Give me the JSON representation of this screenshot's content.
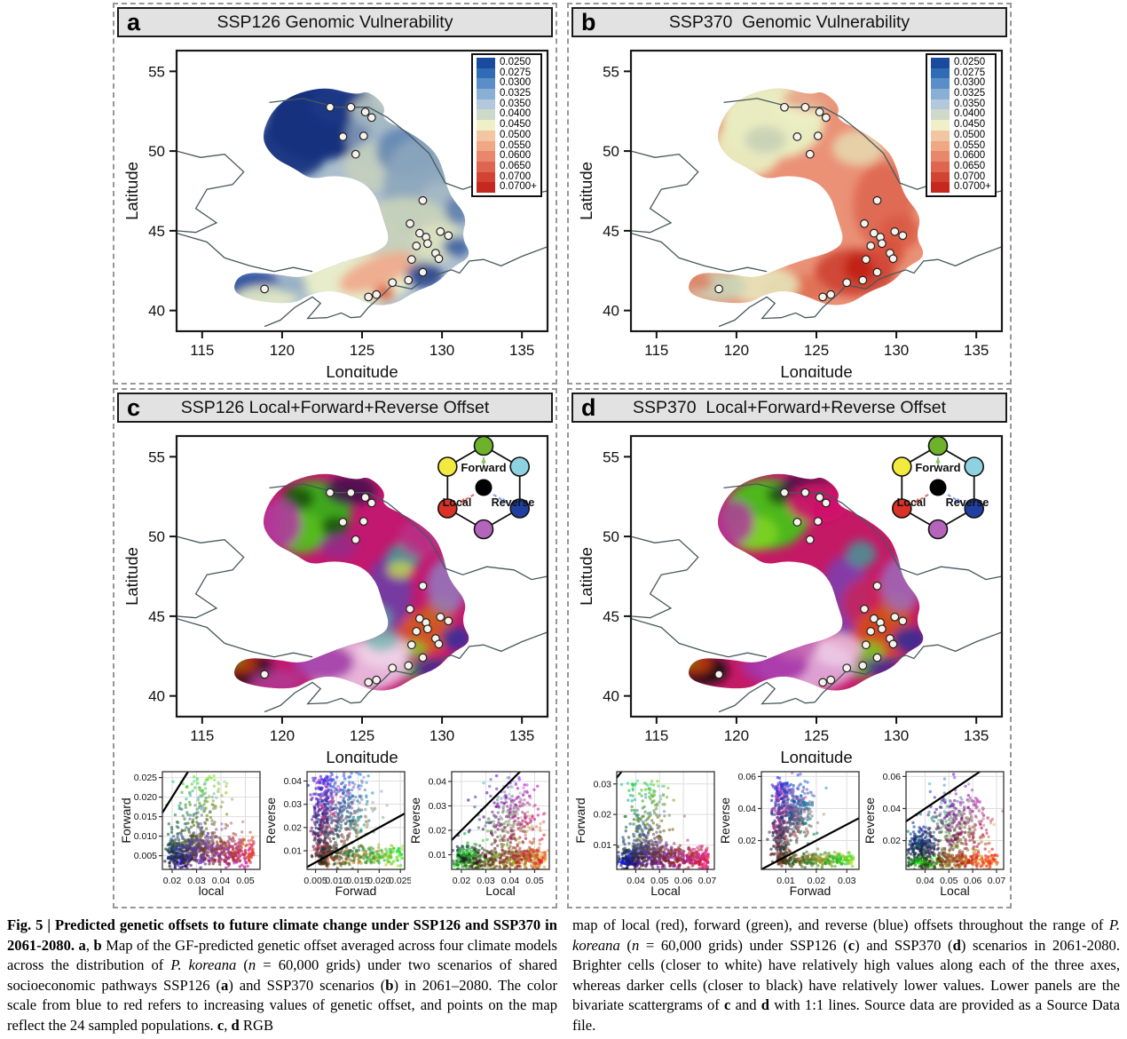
{
  "panels": {
    "a": {
      "label": "a",
      "title": "SSP126 Genomic Vulnerability"
    },
    "b": {
      "label": "b",
      "title": "SSP370  Genomic Vulnerability"
    },
    "c": {
      "label": "c",
      "title": "SSP126 Local+Forward+Reverse Offset"
    },
    "d": {
      "label": "d",
      "title": "SSP370  Local+Forward+Reverse Offset"
    }
  },
  "map_axes": {
    "xlabel": "Longitude",
    "ylabel": "Latitude",
    "xticks": [
      115,
      120,
      125,
      130,
      135
    ],
    "yticks": [
      55,
      50,
      45,
      40
    ],
    "xlim": [
      113.4,
      136.6
    ],
    "ylim": [
      38.7,
      56.3
    ]
  },
  "legend": {
    "labels": [
      "0.0250",
      "0.0275",
      "0.0300",
      "0.0325",
      "0.0350",
      "0.0400",
      "0.0450",
      "0.0500",
      "0.0550",
      "0.0600",
      "0.0650",
      "0.0700",
      "0.0700+"
    ],
    "colors": [
      "#1a4a9e",
      "#2f6cb5",
      "#5b8ec6",
      "#8aafd4",
      "#b3c8dd",
      "#cfd9c9",
      "#f0f0c8",
      "#f2c6a2",
      "#f0a884",
      "#e8876a",
      "#de6550",
      "#d24432",
      "#c6281f"
    ]
  },
  "hexagon": {
    "labels": {
      "forward": "Forward",
      "local": "Local",
      "reverse": "Reverse"
    },
    "vertex_colors": {
      "top": "#6cb32b",
      "top_left": "#f2ea3f",
      "top_right": "#8ed2e2",
      "bottom_left": "#da3227",
      "bottom_right": "#2040a0",
      "bottom": "#b464ba"
    },
    "center_color": "#000000",
    "arrow_colors": {
      "forward": "#8cc46a",
      "local": "#e06a5e",
      "reverse": "#7a9ae0"
    }
  },
  "sample_points": [
    [
      123.0,
      52.75
    ],
    [
      124.3,
      52.75
    ],
    [
      125.2,
      52.45
    ],
    [
      125.6,
      52.1
    ],
    [
      123.8,
      50.9
    ],
    [
      125.1,
      50.95
    ],
    [
      124.6,
      49.8
    ],
    [
      128.8,
      46.9
    ],
    [
      128.0,
      45.45
    ],
    [
      128.6,
      44.85
    ],
    [
      129.0,
      44.6
    ],
    [
      130.4,
      44.7
    ],
    [
      129.9,
      44.95
    ],
    [
      128.4,
      44.05
    ],
    [
      129.1,
      44.2
    ],
    [
      129.6,
      43.6
    ],
    [
      129.8,
      43.25
    ],
    [
      128.1,
      43.2
    ],
    [
      128.8,
      42.4
    ],
    [
      126.9,
      41.75
    ],
    [
      127.9,
      41.9
    ],
    [
      125.4,
      40.85
    ],
    [
      125.9,
      41.0
    ],
    [
      118.9,
      41.35
    ]
  ],
  "chart_data": [
    {
      "id": "map-a",
      "type": "heatmap",
      "title": "SSP126 Genomic Vulnerability",
      "xlabel": "Longitude",
      "ylabel": "Latitude",
      "xticks": [
        115,
        120,
        125,
        130,
        135
      ],
      "yticks": [
        55,
        50,
        45,
        40
      ],
      "xlim": [
        113.4,
        136.6
      ],
      "ylim": [
        38.7,
        56.3
      ],
      "colorbar_values": [
        "0.0250",
        "0.0275",
        "0.0300",
        "0.0325",
        "0.0350",
        "0.0400",
        "0.0450",
        "0.0500",
        "0.0550",
        "0.0600",
        "0.0650",
        "0.0700",
        "0.0700+"
      ],
      "pattern": "dark blue (low offset ~0.025) in northwest Greater Khingan blob, slate blue-green midband, pale yellow and salmon (0.045-0.055) in the south, small red spots near 126.5E 41N",
      "n_points": 24
    },
    {
      "id": "map-b",
      "type": "heatmap",
      "title": "SSP370  Genomic Vulnerability",
      "xlabel": "Longitude",
      "ylabel": "Latitude",
      "xticks": [
        115,
        120,
        125,
        130,
        135
      ],
      "yticks": [
        55,
        50,
        45,
        40
      ],
      "xlim": [
        113.4,
        136.6
      ],
      "ylim": [
        38.7,
        56.3
      ],
      "colorbar_values": [
        "0.0250",
        "0.0275",
        "0.0300",
        "0.0325",
        "0.0350",
        "0.0400",
        "0.0450",
        "0.0500",
        "0.0550",
        "0.0600",
        "0.0650",
        "0.0700",
        "0.0700+"
      ],
      "pattern": "pale yellow (~0.045) northwest blob, salmon-red (0.055-0.065) elsewhere, deep red (0.0700+) hotspot near 127.5E 42.5N",
      "n_points": 24
    },
    {
      "id": "map-c",
      "type": "rgb-map",
      "title": "SSP126 Local+Forward+Reverse Offset",
      "channels": {
        "red": "Local",
        "green": "Forward",
        "blue": "Reverse"
      },
      "xlim": [
        113.4,
        136.6
      ],
      "ylim": [
        38.7,
        56.3
      ],
      "pattern": "green core in NW blob with dark patches, magenta/crimson surround, purple and teal midband, orange cluster near 129E 44N, light pink south, dark SW appendage"
    },
    {
      "id": "map-d",
      "type": "rgb-map",
      "title": "SSP370  Local+Forward+Reverse Offset",
      "channels": {
        "red": "Local",
        "green": "Forward",
        "blue": "Reverse"
      },
      "xlim": [
        113.4,
        136.6
      ],
      "ylim": [
        38.7,
        56.3
      ],
      "pattern": "brighter green NW blob, stronger crimson band, larger orange cluster near 129E 44N, pink/magenta south, dark SW appendage"
    },
    {
      "id": "c1",
      "panel": "c",
      "type": "scatter",
      "xlabel": "local",
      "ylabel": "Forward",
      "xticks": [
        "0.02",
        "0.03",
        "0.04",
        "0.05"
      ],
      "yticks": [
        "0.005",
        "0.010",
        "0.015",
        "0.020",
        "0.025"
      ],
      "xlim": [
        0.016,
        0.056
      ],
      "ylim": [
        0.0015,
        0.0265
      ],
      "one_to_one_line": true,
      "color_channels": {
        "r": "x",
        "g": "y",
        "b": "random"
      },
      "pattern": "dense low band y~0.004-0.009 across x, green plume rising to 0.025 near x~0.03"
    },
    {
      "id": "c2",
      "panel": "c",
      "type": "scatter",
      "xlabel": "Forwad",
      "ylabel": "Reverse",
      "xticks": [
        "0.005",
        "0.010",
        "0.015",
        "0.020",
        "0.025"
      ],
      "yticks": [
        "0.01",
        "0.02",
        "0.03",
        "0.04"
      ],
      "xlim": [
        0.003,
        0.026
      ],
      "ylim": [
        0.002,
        0.044
      ],
      "one_to_one_line": true,
      "color_channels": {
        "r": "random",
        "g": "x",
        "b": "y"
      },
      "pattern": "magenta vertical band x~0.006, pale pink cloud to 0.016, green band along bottom to x~0.025"
    },
    {
      "id": "c3",
      "panel": "c",
      "type": "scatter",
      "xlabel": "Local",
      "ylabel": "Reverse",
      "xticks": [
        "0.02",
        "0.03",
        "0.04",
        "0.05"
      ],
      "yticks": [
        "0.01",
        "0.02",
        "0.03",
        "0.04"
      ],
      "xlim": [
        0.016,
        0.056
      ],
      "ylim": [
        0.004,
        0.044
      ],
      "one_to_one_line": true,
      "color_channels": {
        "r": "x",
        "g": "random",
        "b": "y"
      },
      "pattern": "triangular cloud: green lower-left, red-orange bottom edge, purple-pink apex to y~0.04"
    },
    {
      "id": "d1",
      "panel": "d",
      "type": "scatter",
      "xlabel": "Local",
      "ylabel": "Forward",
      "xticks": [
        "0.04",
        "0.05",
        "0.06",
        "0.07"
      ],
      "yticks": [
        "0.01",
        "0.02",
        "0.03"
      ],
      "xlim": [
        0.032,
        0.073
      ],
      "ylim": [
        0.002,
        0.034
      ],
      "one_to_one_line": true,
      "color_channels": {
        "r": "x",
        "g": "y",
        "b": "random"
      },
      "pattern": "dense low band y~0.004-0.008, green plume to 0.032 near x~0.045, blue lower-left, red lower-right"
    },
    {
      "id": "d2",
      "panel": "d",
      "type": "scatter",
      "xlabel": "Forwad",
      "ylabel": "Reverse",
      "xticks": [
        "0.01",
        "0.02",
        "0.03"
      ],
      "yticks": [
        "0.02",
        "0.04",
        "0.06"
      ],
      "xlim": [
        0.002,
        0.034
      ],
      "ylim": [
        0.002,
        0.063
      ],
      "one_to_one_line": true,
      "color_channels": {
        "r": "random",
        "g": "x",
        "b": "y"
      },
      "pattern": "magenta vertical band x~0.008 up to y~0.055, pale cloud to x~0.018, green band along bottom"
    },
    {
      "id": "d3",
      "panel": "d",
      "type": "scatter",
      "xlabel": "Local",
      "ylabel": "Reverse",
      "xticks": [
        "0.04",
        "0.05",
        "0.06",
        "0.07"
      ],
      "yticks": [
        "0.02",
        "0.04",
        "0.06"
      ],
      "xlim": [
        0.032,
        0.073
      ],
      "ylim": [
        0.002,
        0.063
      ],
      "one_to_one_line": true,
      "color_channels": {
        "r": "x",
        "g": "random",
        "b": "y"
      },
      "pattern": "navy blob x~0.038 y~0.017, purple-pink cloud centre, green lower-left corner, red-orange bottom band"
    }
  ],
  "caption": {
    "left": [
      {
        "t": "Fig. 5 | Predicted genetic offsets to future climate change under SSP126 and SSP370 in 2061-2080. ",
        "b": 1
      },
      {
        "t": "a",
        "b": 1
      },
      {
        "t": ", "
      },
      {
        "t": "b",
        "b": 1
      },
      {
        "t": " Map of the GF-predicted genetic offset averaged across four climate models across the distribution of "
      },
      {
        "t": "P. koreana",
        "i": 1
      },
      {
        "t": " ("
      },
      {
        "t": "n",
        "i": 1
      },
      {
        "t": " = 60,000 grids) under two scenarios of shared socioeconomic pathways SSP126 ("
      },
      {
        "t": "a",
        "b": 1
      },
      {
        "t": ") and SSP370 scenarios ("
      },
      {
        "t": "b",
        "b": 1
      },
      {
        "t": ") in 2061–2080. The color scale from blue to red refers to increasing values of genetic offset, and points on the map reflect the 24 sampled populations. "
      },
      {
        "t": "c",
        "b": 1
      },
      {
        "t": ", "
      },
      {
        "t": "d",
        "b": 1
      },
      {
        "t": " RGB"
      }
    ],
    "right": [
      {
        "t": "map of local (red), forward (green), and reverse (blue) offsets throughout the range of "
      },
      {
        "t": "P. koreana",
        "i": 1
      },
      {
        "t": " ("
      },
      {
        "t": "n",
        "i": 1
      },
      {
        "t": " = 60,000 grids) under SSP126 ("
      },
      {
        "t": "c",
        "b": 1
      },
      {
        "t": ") and SSP370 ("
      },
      {
        "t": "d",
        "b": 1
      },
      {
        "t": ") scenarios in 2061-2080. Brighter cells (closer to white) have relatively high values along each of the three axes, whereas darker cells (closer to black) have relatively lower values. Lower panels are the bivariate scattergrams of "
      },
      {
        "t": "c",
        "b": 1
      },
      {
        "t": " and "
      },
      {
        "t": "d",
        "b": 1
      },
      {
        "t": " with 1:1 lines. Source data are provided as a Source Data file."
      }
    ]
  }
}
